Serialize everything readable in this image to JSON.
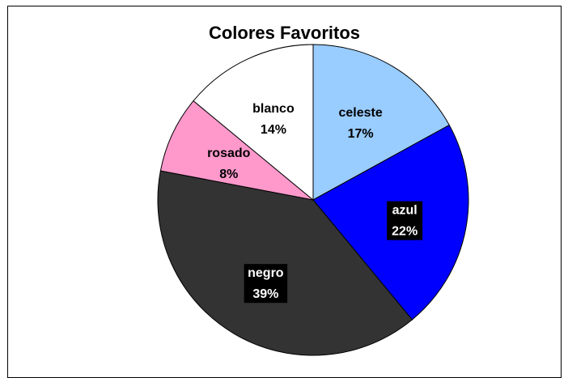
{
  "chart_data": {
    "type": "pie",
    "title": "Colores Favoritos",
    "slices": [
      {
        "label": "celeste",
        "value": 17,
        "display": "17%",
        "color": "#99ccff",
        "text_color": "#000000",
        "label_bg": ""
      },
      {
        "label": "azul",
        "value": 22,
        "display": "22%",
        "color": "#0000ff",
        "text_color": "#ffffff",
        "label_bg": "#000000"
      },
      {
        "label": "negro",
        "value": 39,
        "display": "39%",
        "color": "#333333",
        "text_color": "#ffffff",
        "label_bg": "#000000"
      },
      {
        "label": "rosado",
        "value": 8,
        "display": "8%",
        "color": "#ff99cc",
        "text_color": "#000000",
        "label_bg": ""
      },
      {
        "label": "blanco",
        "value": 14,
        "display": "14%",
        "color": "#ffffff",
        "text_color": "#000000",
        "label_bg": ""
      }
    ],
    "start_angle": "top",
    "direction": "clockwise",
    "legend": "none"
  }
}
